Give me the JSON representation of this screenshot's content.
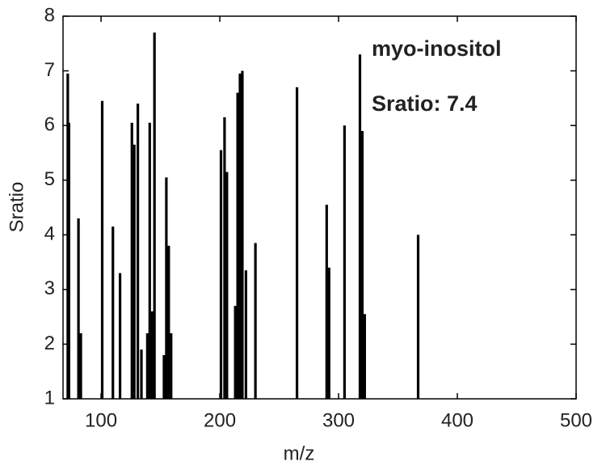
{
  "chart_data": {
    "type": "bar",
    "annotations": [
      "myo-inositol",
      "Sratio: 7.4"
    ],
    "x_label": "m/z",
    "y_label": "Sratio",
    "x": [
      72,
      73,
      81,
      83,
      101,
      110,
      116,
      126,
      128,
      131,
      134,
      139,
      141,
      143,
      145,
      153,
      155,
      157,
      159,
      201,
      204,
      206,
      213,
      215,
      217,
      219,
      222,
      230,
      265,
      290,
      292,
      305,
      318,
      320,
      322,
      367
    ],
    "values": [
      6.95,
      6.05,
      4.3,
      2.2,
      6.45,
      4.15,
      3.3,
      6.05,
      5.65,
      6.4,
      1.9,
      2.2,
      6.05,
      2.6,
      7.7,
      1.8,
      5.05,
      3.8,
      2.2,
      5.55,
      6.15,
      5.15,
      2.7,
      6.6,
      6.95,
      7.0,
      3.35,
      3.85,
      6.7,
      4.55,
      3.4,
      6.0,
      7.3,
      5.9,
      2.55,
      4.0
    ],
    "color": "#000000",
    "xlim": [
      68,
      500
    ],
    "ylim": [
      1,
      8
    ],
    "xticks": [
      100,
      200,
      300,
      400,
      500
    ],
    "yticks": [
      1,
      2,
      3,
      4,
      5,
      6,
      7,
      8
    ],
    "grid": false
  }
}
